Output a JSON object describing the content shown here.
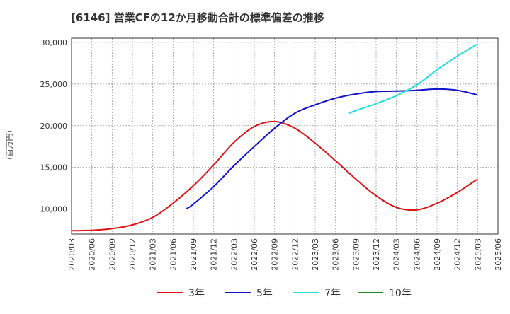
{
  "chart_data": {
    "type": "line",
    "title": "[6146]  営業CFの12か月移動合計の標準偏差の推移",
    "ylabel": "(百万円)",
    "xlabel": "",
    "ylim": [
      7000,
      30500
    ],
    "yticks": [
      10000,
      15000,
      20000,
      25000,
      30000
    ],
    "ytick_labels": [
      "10,000",
      "15,000",
      "20,000",
      "25,000",
      "30,000"
    ],
    "xticks": [
      "2020/03",
      "2020/06",
      "2020/09",
      "2020/12",
      "2021/03",
      "2021/06",
      "2021/09",
      "2021/12",
      "2022/03",
      "2022/06",
      "2022/09",
      "2022/12",
      "2023/03",
      "2023/06",
      "2023/09",
      "2023/12",
      "2024/03",
      "2024/06",
      "2024/09",
      "2024/12",
      "2025/03",
      "2025/06"
    ],
    "grid": true,
    "legend_position": "bottom",
    "series": [
      {
        "name": "3年",
        "color": "#dd1111",
        "x": [
          "2020/03",
          "2020/06",
          "2020/09",
          "2020/12",
          "2021/03",
          "2021/06",
          "2021/09",
          "2021/12",
          "2022/03",
          "2022/06",
          "2022/09",
          "2022/12",
          "2023/03",
          "2023/06",
          "2023/09",
          "2023/12",
          "2024/03",
          "2024/06",
          "2024/09",
          "2024/12",
          "2025/03"
        ],
        "values": [
          7400,
          7450,
          7650,
          8100,
          9000,
          10700,
          12800,
          15300,
          18000,
          19900,
          20500,
          19700,
          17900,
          15800,
          13600,
          11600,
          10200,
          9900,
          10700,
          12000,
          13600
        ]
      },
      {
        "name": "5年",
        "color": "#1111cc",
        "x": [
          "2021/08",
          "2021/09",
          "2021/12",
          "2022/03",
          "2022/06",
          "2022/09",
          "2022/12",
          "2023/03",
          "2023/06",
          "2023/09",
          "2023/12",
          "2024/03",
          "2024/06",
          "2024/09",
          "2024/12",
          "2025/03"
        ],
        "values": [
          10050,
          10600,
          12700,
          15200,
          17500,
          19700,
          21500,
          22500,
          23300,
          23800,
          24100,
          24150,
          24250,
          24400,
          24250,
          23700
        ]
      },
      {
        "name": "7年",
        "color": "#22dddd",
        "x": [
          "2023/08",
          "2023/09",
          "2023/12",
          "2024/03",
          "2024/06",
          "2024/09",
          "2024/12",
          "2025/03"
        ],
        "values": [
          21500,
          21800,
          22650,
          23600,
          24900,
          26700,
          28350,
          29800
        ]
      },
      {
        "name": "10年",
        "color": "#228822",
        "x": [],
        "values": []
      }
    ]
  }
}
